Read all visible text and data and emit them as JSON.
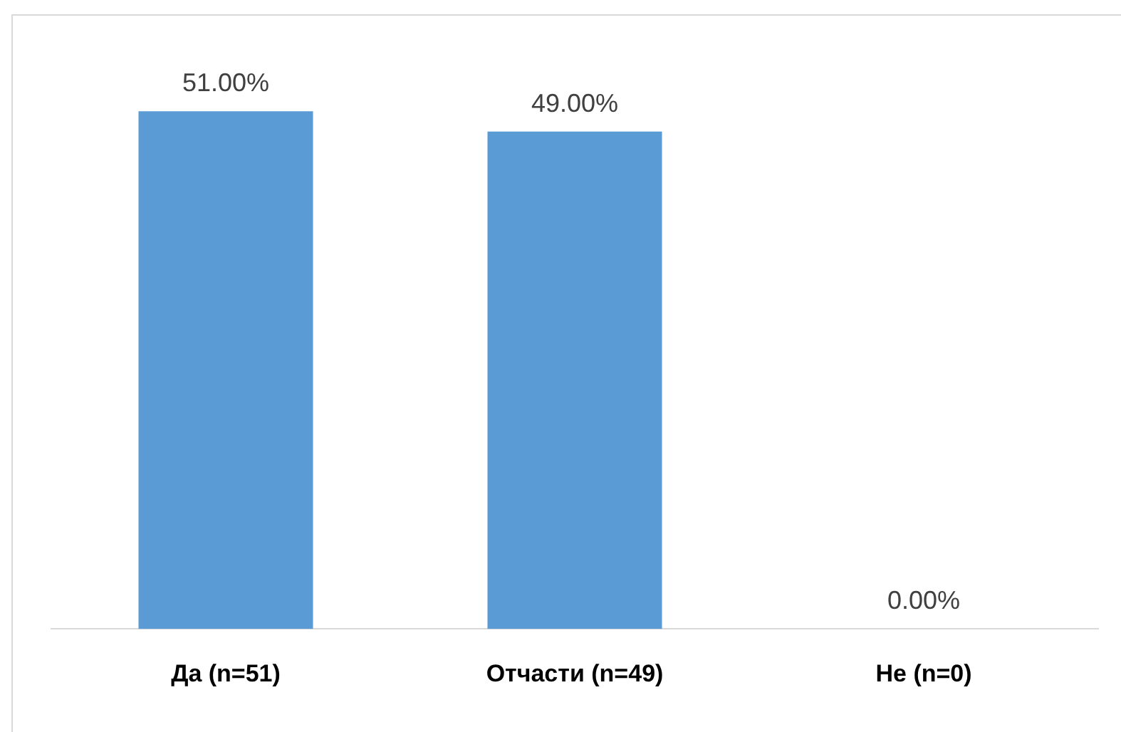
{
  "chart_data": {
    "type": "bar",
    "categories": [
      "Да (n=51)",
      "Отчасти (n=49)",
      "Не (n=0)"
    ],
    "values": [
      51,
      49,
      0
    ],
    "color": "#5b9bd5",
    "value_labels": [
      "51.00%",
      "49.00%",
      "0.00%"
    ],
    "grid": false,
    "legend": false
  }
}
